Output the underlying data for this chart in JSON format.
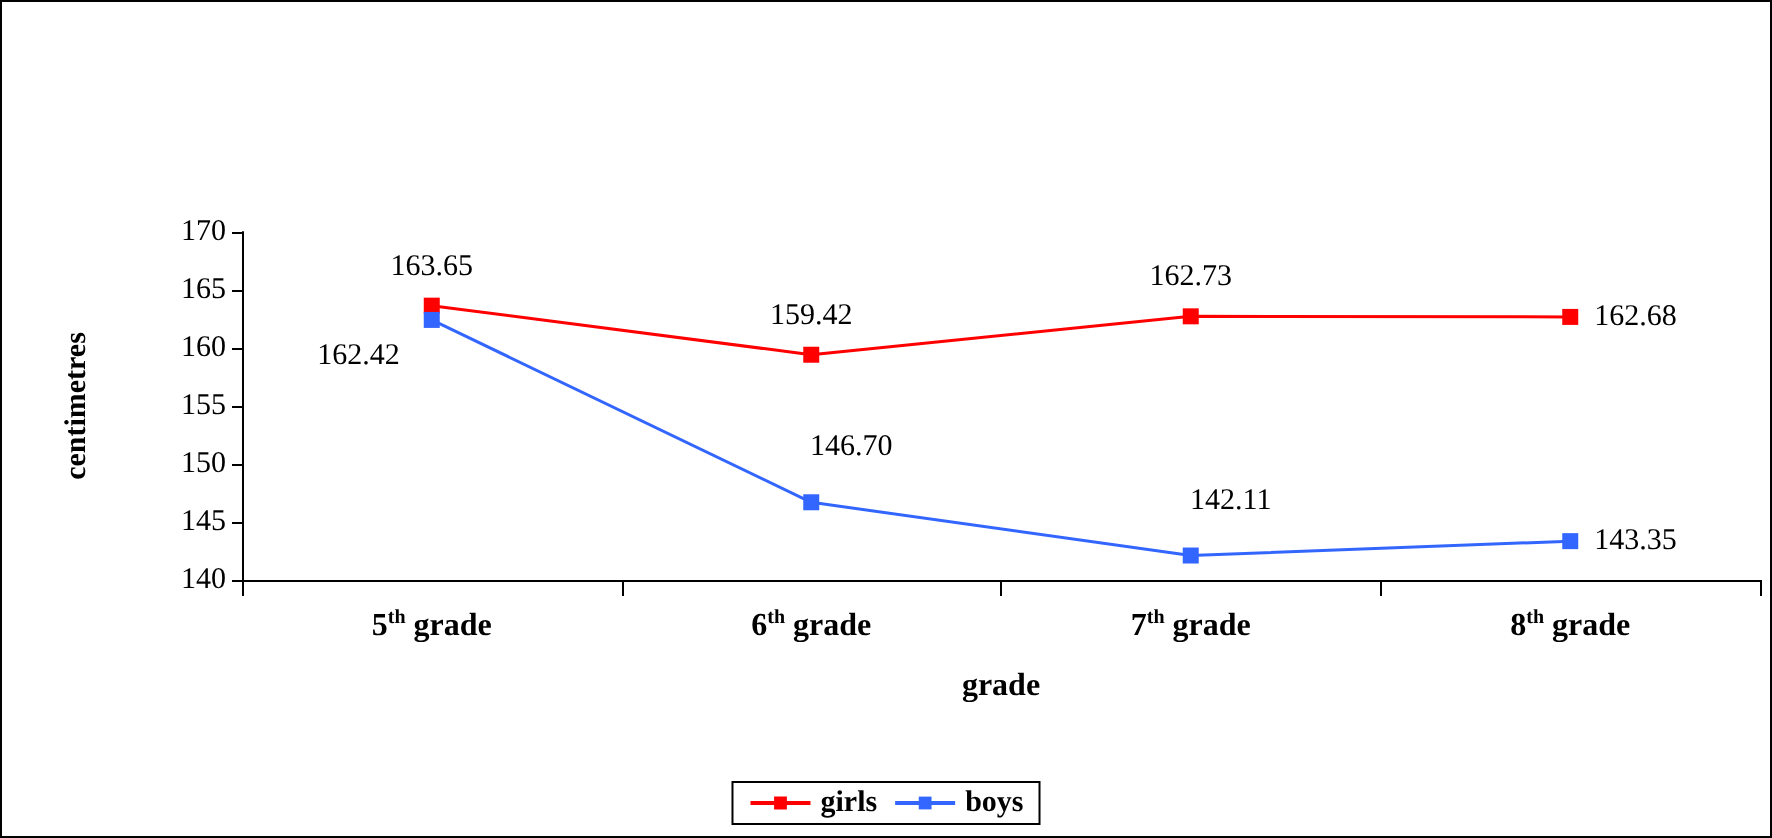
{
  "chart_data": {
    "type": "line",
    "xlabel": "grade",
    "ylabel": "centimetres",
    "categories": [
      "5$^{th}$ grade",
      "6$^{th}$ grade",
      "7$^{th}$ grade",
      "8$^{th}$ grade"
    ],
    "series": [
      {
        "name": "girls",
        "color": "#ff0000",
        "values": [
          163.65,
          159.42,
          162.73,
          162.68
        ],
        "value_labels": [
          "163.65",
          "159.42",
          "162.73",
          "162.68"
        ]
      },
      {
        "name": "boys",
        "color": "#3366ff",
        "values": [
          162.42,
          146.7,
          142.11,
          143.35
        ],
        "value_labels": [
          "162.42",
          "146.70",
          "142.11",
          "143.35"
        ]
      }
    ],
    "ylim": [
      140,
      170
    ],
    "yticks": [
      140,
      145,
      150,
      155,
      160,
      165,
      170
    ],
    "grid": false,
    "legend": "bottom",
    "marker": "square",
    "line_style": "solid"
  }
}
